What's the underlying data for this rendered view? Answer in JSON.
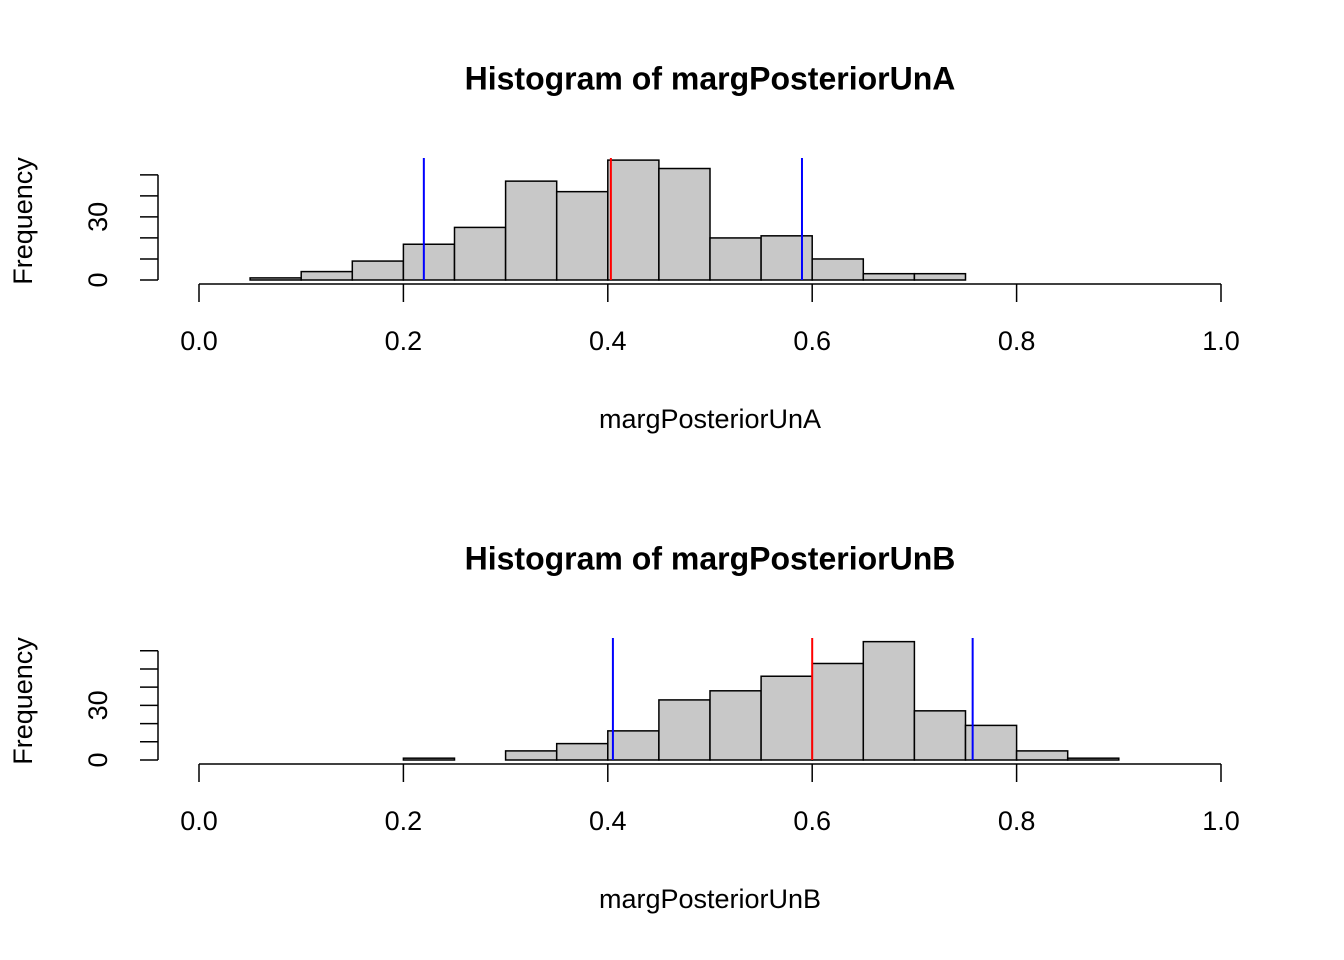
{
  "chart_data": [
    {
      "type": "histogram",
      "title": "Histogram of margPosteriorUnA",
      "xlabel": "margPosteriorUnA",
      "ylabel": "Frequency",
      "bins": [
        0.05,
        0.1,
        0.15,
        0.2,
        0.25,
        0.3,
        0.35,
        0.4,
        0.45,
        0.5,
        0.55,
        0.6,
        0.65,
        0.7,
        0.75
      ],
      "counts": [
        1,
        4,
        9,
        17,
        25,
        47,
        42,
        57,
        53,
        20,
        21,
        10,
        3,
        3
      ],
      "color": "#c8c8c8",
      "xlim": [
        0,
        1
      ],
      "xticks": [
        {
          "value": 0,
          "label": "0.0"
        },
        0.2,
        0.4,
        0.6,
        0.8,
        {
          "value": 1,
          "label": "1.0"
        }
      ],
      "ylim": [
        0,
        58
      ],
      "yticks": [
        0,
        10,
        20,
        30,
        40,
        50
      ],
      "yticklabels": [
        0,
        30
      ],
      "vlines": [
        {
          "value": 0.22,
          "color": "blue"
        },
        {
          "value": 0.403,
          "color": "red"
        },
        {
          "value": 0.59,
          "color": "blue"
        }
      ]
    },
    {
      "type": "histogram",
      "title": "Histogram of margPosteriorUnB",
      "xlabel": "margPosteriorUnB",
      "ylabel": "Frequency",
      "bins": [
        0.2,
        0.25,
        0.3,
        0.35,
        0.4,
        0.45,
        0.5,
        0.55,
        0.6,
        0.65,
        0.7,
        0.75,
        0.8,
        0.85,
        0.9
      ],
      "counts": [
        1,
        0,
        5,
        9,
        16,
        33,
        38,
        46,
        53,
        65,
        27,
        19,
        5,
        1
      ],
      "color": "#c8c8c8",
      "xlim": [
        0,
        1
      ],
      "xticks": [
        {
          "value": 0,
          "label": "0.0"
        },
        0.2,
        0.4,
        0.6,
        0.8,
        {
          "value": 1,
          "label": "1.0"
        }
      ],
      "ylim": [
        0,
        67
      ],
      "yticks": [
        0,
        10,
        20,
        30,
        40,
        50,
        60
      ],
      "yticklabels": [
        0,
        30
      ],
      "vlines": [
        {
          "value": 0.405,
          "color": "blue"
        },
        {
          "value": 0.6,
          "color": "red"
        },
        {
          "value": 0.757,
          "color": "blue"
        }
      ]
    }
  ]
}
